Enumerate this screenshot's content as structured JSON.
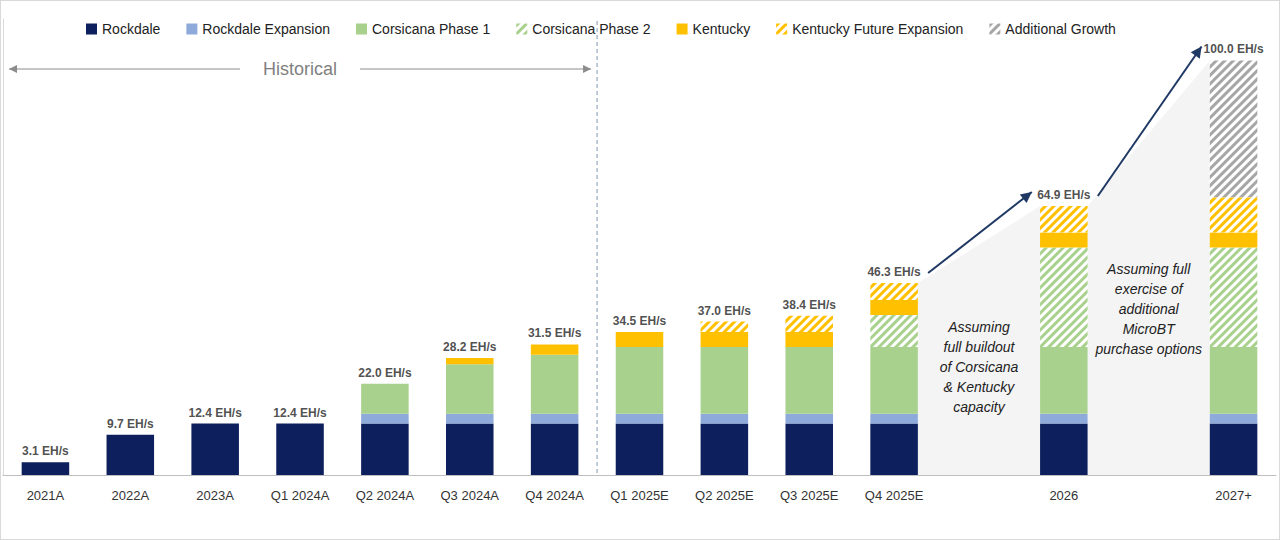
{
  "chart_data": {
    "type": "bar",
    "stacked": true,
    "grid": false,
    "legend": "top",
    "tick_labels": "x",
    "categories": [
      "2021A",
      "2022A",
      "2023A",
      "Q1 2024A",
      "Q2 2024A",
      "Q3 2024A",
      "Q4 2024A",
      "Q1 2025E",
      "Q2 2025E",
      "Q3 2025E",
      "Q4 2025E",
      null,
      "2026",
      null,
      "2027+"
    ],
    "ylim": [
      0,
      110
    ],
    "series": [
      {
        "name": "Rockdale",
        "color": "#0d1f5c",
        "marker": "solid",
        "values": [
          3.1,
          9.7,
          12.4,
          12.4,
          12.4,
          12.4,
          12.4,
          12.4,
          12.4,
          12.4,
          12.4,
          null,
          12.4,
          null,
          12.4
        ]
      },
      {
        "name": "Rockdale Expansion",
        "color": "#8eaadb",
        "marker": "solid",
        "values": [
          null,
          null,
          null,
          null,
          2.4,
          2.4,
          2.4,
          2.4,
          2.4,
          2.4,
          2.4,
          null,
          2.4,
          null,
          2.4
        ]
      },
      {
        "name": "Corsicana Phase 1",
        "color": "#a9d18e",
        "marker": "solid",
        "values": [
          null,
          null,
          null,
          null,
          7.2,
          11.9,
          14.2,
          16.1,
          16.1,
          16.1,
          16.1,
          null,
          16.1,
          null,
          16.1
        ]
      },
      {
        "name": "Corsicana Phase 2",
        "color": "#a9d18e",
        "marker": "hatch",
        "values": [
          null,
          null,
          null,
          null,
          null,
          null,
          null,
          null,
          null,
          null,
          7.7,
          null,
          24.0,
          null,
          24.0
        ]
      },
      {
        "name": "Kentucky",
        "color": "#ffc000",
        "marker": "solid",
        "values": [
          null,
          null,
          null,
          null,
          null,
          1.5,
          2.5,
          3.6,
          3.6,
          3.6,
          3.6,
          null,
          3.6,
          null,
          3.6
        ]
      },
      {
        "name": "Kentucky Future Expansion",
        "color": "#ffc000",
        "marker": "hatch",
        "values": [
          null,
          null,
          null,
          null,
          null,
          null,
          null,
          null,
          2.5,
          3.9,
          4.1,
          null,
          6.4,
          null,
          8.5
        ]
      },
      {
        "name": "Additional Growth",
        "color": "#a6a6a6",
        "marker": "hatch",
        "values": [
          null,
          null,
          null,
          null,
          null,
          null,
          null,
          null,
          null,
          null,
          null,
          null,
          null,
          null,
          33.0
        ]
      }
    ],
    "totals": [
      3.1,
      9.7,
      12.4,
      12.4,
      22.0,
      28.2,
      31.5,
      34.5,
      37.0,
      38.4,
      46.3,
      null,
      64.9,
      null,
      100.0
    ],
    "total_labels": [
      "3.1 EH/s",
      "9.7 EH/s",
      "12.4 EH/s",
      "12.4 EH/s",
      "22.0 EH/s",
      "28.2 EH/s",
      "31.5 EH/s",
      "34.5 EH/s",
      "37.0 EH/s",
      "38.4 EH/s",
      "46.3 EH/s",
      null,
      "64.9 EH/s",
      null,
      "100.0 EH/s"
    ],
    "annotations": [
      {
        "text": "Historical"
      },
      {
        "text": "Assuming\nfull buildout\nof Corsicana\n& Kentucky\ncapacity"
      },
      {
        "text": "Assuming full\nexercise of\nadditional\nMicroBT\npurchase options"
      }
    ]
  }
}
